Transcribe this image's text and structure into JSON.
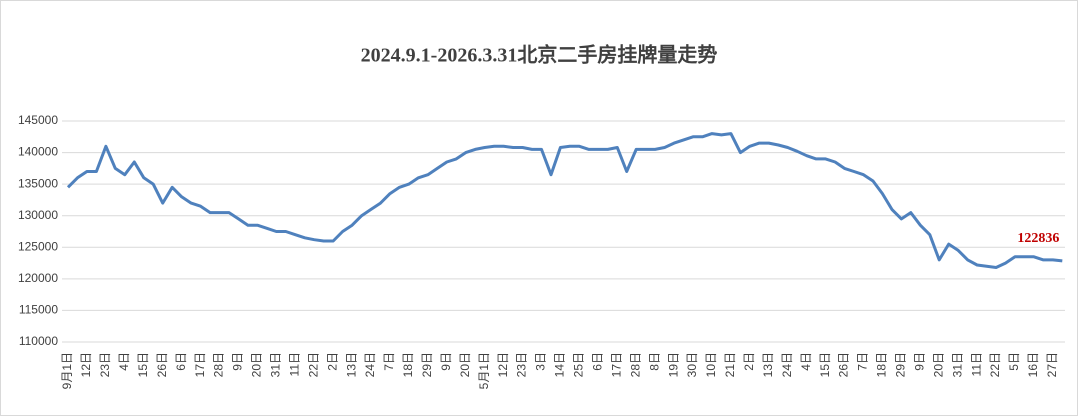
{
  "chart_data": {
    "type": "line",
    "title": "2024.9.1-2026.3.31北京二手房挂牌量走势",
    "categories": [
      "9月1日",
      null,
      "12日",
      null,
      "23日",
      null,
      "4日",
      null,
      "15日",
      null,
      "26日",
      null,
      "6日",
      null,
      "17日",
      null,
      "28日",
      null,
      "9日",
      null,
      "20日",
      null,
      "31日",
      null,
      "11日",
      null,
      "22日",
      null,
      "2日",
      null,
      "13日",
      null,
      "24日",
      null,
      "7日",
      null,
      "18日",
      null,
      "29日",
      null,
      "9日",
      null,
      "20日",
      null,
      "5月1日",
      null,
      "12日",
      null,
      "23日",
      null,
      "3日",
      null,
      "14日",
      null,
      "25日",
      null,
      "6日",
      null,
      "17日",
      null,
      "28日",
      null,
      "8日",
      null,
      "19日",
      null,
      "30日",
      null,
      "10日",
      null,
      "21日",
      null,
      "2日",
      null,
      "13日",
      null,
      "24日",
      null,
      "4日",
      null,
      "15日",
      null,
      "26日",
      null,
      "7日",
      null,
      "18日",
      null,
      "29日",
      null,
      "9日",
      null,
      "20日",
      null,
      "31日",
      null,
      "11日",
      null,
      "22日",
      null,
      "5日",
      null,
      "16日",
      null,
      "27日",
      null
    ],
    "values": [
      134500,
      136000,
      137000,
      137000,
      141000,
      137500,
      136500,
      138500,
      136000,
      135000,
      132000,
      134500,
      133000,
      132000,
      131500,
      130500,
      130500,
      130500,
      129500,
      128500,
      128500,
      128000,
      127500,
      127500,
      127000,
      126500,
      126200,
      126000,
      126000,
      127500,
      128500,
      130000,
      131000,
      132000,
      133500,
      134500,
      135000,
      136000,
      136500,
      137500,
      138500,
      139000,
      140000,
      140500,
      140800,
      141000,
      141000,
      140800,
      140800,
      140500,
      140500,
      136500,
      140800,
      141000,
      141000,
      140500,
      140500,
      140500,
      140800,
      137000,
      140500,
      140500,
      140500,
      140800,
      141500,
      142000,
      142500,
      142500,
      143000,
      142800,
      143000,
      140000,
      141000,
      141500,
      141500,
      141200,
      140800,
      140200,
      139500,
      139000,
      139000,
      138500,
      137500,
      137000,
      136500,
      135500,
      133500,
      131000,
      129500,
      130500,
      128500,
      127000,
      123000,
      125500,
      124500,
      123000,
      122200,
      122000,
      121800,
      122500,
      123500,
      123500,
      123500,
      123000,
      123000,
      122836
    ],
    "color": "#4f81bd",
    "ylim": [
      110000,
      145000
    ],
    "yticks": [
      110000,
      115000,
      120000,
      125000,
      130000,
      135000,
      140000,
      145000
    ],
    "grid": true
  }
}
